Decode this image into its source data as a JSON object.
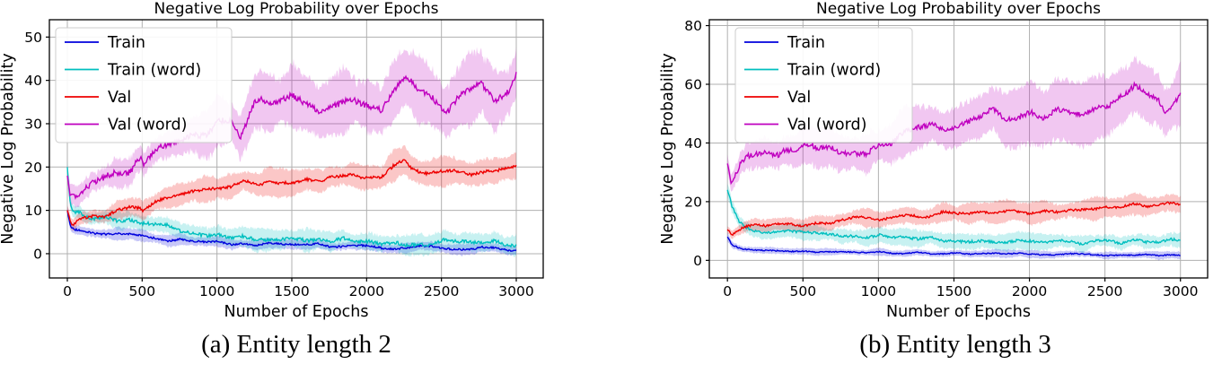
{
  "figure": {
    "background": "#ffffff"
  },
  "chart_data": [
    {
      "type": "line",
      "title": "Negative Log Probability over Epochs",
      "xlabel": "Number of Epochs",
      "ylabel": "Negative Log Probability",
      "caption": "(a) Entity length 2",
      "xlim": [
        -120,
        3180
      ],
      "ylim": [
        -5.6,
        54
      ],
      "xticks": [
        0,
        500,
        1000,
        1500,
        2000,
        2500,
        3000
      ],
      "yticks": [
        0,
        10,
        20,
        30,
        40,
        50
      ],
      "grid": true,
      "grid_color": "#b0b0b0",
      "legend_position": "upper left",
      "band_opacity": 0.22,
      "series": [
        {
          "name": "Train",
          "color": "#0000dd",
          "noise": 0.4,
          "x": [
            0,
            20,
            50,
            100,
            200,
            300,
            400,
            490,
            510,
            600,
            700,
            800,
            900,
            1000,
            1100,
            1200,
            1400,
            1600,
            1800,
            2000,
            2200,
            2400,
            2600,
            2800,
            3000
          ],
          "y": [
            10,
            6.5,
            5.6,
            5.2,
            4.7,
            4.4,
            4.2,
            4.1,
            3.9,
            3.4,
            3.1,
            2.9,
            2.7,
            2.5,
            2.4,
            2.3,
            2.1,
            1.9,
            1.8,
            1.6,
            1.5,
            1.4,
            1.3,
            1.2,
            1.1
          ],
          "band": [
            1.5,
            1.3,
            1.2,
            1.2,
            1.2,
            1.2,
            1.2,
            1.2,
            1.2,
            1.1,
            1.1,
            1.1,
            1.1,
            1.0,
            1.0,
            1.0,
            1.0,
            1.0,
            1.0,
            1.0,
            1.0,
            1.0,
            1.0,
            1.0,
            1.0
          ]
        },
        {
          "name": "Train (word)",
          "color": "#00bfbf",
          "noise": 0.7,
          "x": [
            0,
            20,
            50,
            100,
            200,
            300,
            400,
            490,
            510,
            600,
            700,
            800,
            900,
            1000,
            1100,
            1200,
            1400,
            1600,
            1800,
            2000,
            2200,
            2400,
            2600,
            2800,
            3000
          ],
          "y": [
            20,
            11,
            9.5,
            8.8,
            8.3,
            7.9,
            7.3,
            7.0,
            7.2,
            6.3,
            5.7,
            5.2,
            4.8,
            4.4,
            4.0,
            3.7,
            3.3,
            3.0,
            2.9,
            2.7,
            2.7,
            2.6,
            2.6,
            2.5,
            2.3
          ],
          "band": [
            1.5,
            1.5,
            1.5,
            1.5,
            1.6,
            1.7,
            1.8,
            1.9,
            1.9,
            2.0,
            2.0,
            2.1,
            2.1,
            2.1,
            2.1,
            2.1,
            2.1,
            2.1,
            2.1,
            2.1,
            2.1,
            2.1,
            2.1,
            2.1,
            2.1
          ]
        },
        {
          "name": "Val",
          "color": "#ee0000",
          "noise": 0.6,
          "x": [
            0,
            30,
            100,
            200,
            300,
            400,
            490,
            510,
            600,
            700,
            800,
            900,
            1000,
            1100,
            1200,
            1300,
            1400,
            1500,
            1600,
            1700,
            1800,
            1900,
            2000,
            2100,
            2200,
            2250,
            2300,
            2400,
            2500,
            2600,
            2700,
            2800,
            2900,
            3000
          ],
          "y": [
            10,
            6.4,
            7.6,
            8.4,
            9.3,
            10.0,
            10.8,
            10.2,
            11.8,
            12.8,
            13.4,
            14.3,
            15.3,
            15.8,
            16.3,
            15.9,
            16.4,
            17.0,
            17.4,
            16.9,
            17.6,
            18.4,
            17.6,
            18.1,
            20.3,
            21.2,
            19.6,
            18.6,
            19.0,
            19.5,
            18.6,
            19.4,
            19.9,
            20.4
          ],
          "band": [
            1.2,
            1.2,
            1.4,
            1.6,
            1.8,
            1.9,
            2.0,
            2.0,
            2.2,
            2.3,
            2.4,
            2.5,
            2.6,
            2.6,
            2.7,
            2.7,
            2.7,
            2.8,
            2.8,
            2.8,
            2.8,
            2.9,
            2.9,
            2.9,
            3.0,
            3.0,
            3.0,
            3.0,
            3.0,
            3.0,
            3.0,
            3.0,
            3.0,
            3.0
          ]
        },
        {
          "name": "Val (word)",
          "color": "#bf00bf",
          "noise": 1.3,
          "x": [
            0,
            20,
            100,
            200,
            300,
            400,
            490,
            510,
            600,
            700,
            800,
            900,
            1000,
            1100,
            1150,
            1250,
            1300,
            1400,
            1500,
            1600,
            1700,
            1800,
            1900,
            2000,
            2100,
            2200,
            2270,
            2350,
            2450,
            2550,
            2650,
            2750,
            2850,
            2950,
            3000
          ],
          "y": [
            18,
            13.2,
            15.0,
            16.4,
            18.6,
            19.8,
            21.8,
            19.5,
            23.0,
            25.5,
            26.5,
            27.5,
            29.0,
            31.5,
            27.5,
            34.5,
            35.5,
            36.0,
            37.5,
            35.5,
            34.0,
            35.5,
            37.0,
            35.0,
            34.0,
            39.0,
            41.0,
            37.5,
            35.0,
            33.5,
            36.5,
            38.5,
            36.0,
            38.0,
            41.5
          ],
          "band": [
            2.0,
            2.0,
            2.2,
            2.5,
            2.8,
            3.0,
            3.2,
            3.2,
            3.6,
            4.0,
            4.3,
            4.5,
            4.8,
            5.0,
            5.0,
            5.5,
            5.6,
            5.8,
            6.0,
            6.0,
            6.0,
            6.2,
            6.3,
            6.3,
            6.4,
            6.5,
            6.5,
            6.6,
            6.6,
            6.7,
            6.8,
            6.9,
            7.0,
            7.0,
            7.0
          ]
        }
      ]
    },
    {
      "type": "line",
      "title": "Negative Log Probability over Epochs",
      "xlabel": "Number of Epochs",
      "ylabel": "Negative Log Probability",
      "caption": "(b) Entity length 3",
      "xlim": [
        -120,
        3180
      ],
      "ylim": [
        -6,
        82
      ],
      "xticks": [
        0,
        500,
        1000,
        1500,
        2000,
        2500,
        3000
      ],
      "yticks": [
        0,
        20,
        40,
        60,
        80
      ],
      "grid": true,
      "grid_color": "#b0b0b0",
      "legend_position": "upper left",
      "band_opacity": 0.22,
      "series": [
        {
          "name": "Train",
          "color": "#0000dd",
          "noise": 0.35,
          "x": [
            0,
            30,
            100,
            200,
            300,
            400,
            500,
            700,
            1000,
            1300,
            1600,
            2000,
            2400,
            2700,
            3000
          ],
          "y": [
            8,
            5.2,
            4.0,
            3.4,
            3.2,
            3.1,
            3.0,
            2.9,
            2.6,
            2.4,
            2.3,
            2.1,
            1.9,
            1.8,
            1.6
          ],
          "band": [
            1.4,
            1.2,
            1.1,
            1.1,
            1.1,
            1.1,
            1.1,
            1.1,
            1.1,
            1.1,
            1.1,
            1.1,
            1.1,
            1.1,
            1.1
          ]
        },
        {
          "name": "Train (word)",
          "color": "#00bfbf",
          "noise": 0.8,
          "x": [
            0,
            30,
            80,
            150,
            250,
            350,
            450,
            550,
            700,
            850,
            1000,
            1200,
            1400,
            1600,
            1800,
            2000,
            2200,
            2400,
            2600,
            2800,
            3000
          ],
          "y": [
            24,
            18,
            13,
            10.8,
            10.2,
            10.4,
            9.9,
            9.6,
            9.2,
            8.7,
            8.4,
            7.9,
            7.4,
            7.2,
            6.8,
            6.7,
            6.3,
            6.2,
            6.4,
            6.1,
            6.6
          ],
          "band": [
            2.0,
            2.0,
            2.0,
            2.1,
            2.2,
            2.2,
            2.3,
            2.3,
            2.3,
            2.4,
            2.4,
            2.4,
            2.4,
            2.4,
            2.4,
            2.4,
            2.4,
            2.4,
            2.5,
            2.5,
            2.5
          ]
        },
        {
          "name": "Val",
          "color": "#ee0000",
          "noise": 0.7,
          "x": [
            0,
            30,
            100,
            200,
            300,
            400,
            500,
            600,
            700,
            800,
            900,
            1000,
            1100,
            1200,
            1300,
            1400,
            1500,
            1600,
            1700,
            1800,
            1900,
            2000,
            2100,
            2200,
            2300,
            2400,
            2500,
            2600,
            2700,
            2800,
            2900,
            3000
          ],
          "y": [
            10.5,
            8.2,
            10.8,
            11.8,
            12.0,
            12.4,
            12.1,
            12.8,
            13.3,
            13.8,
            14.4,
            14.0,
            14.8,
            15.3,
            14.9,
            15.8,
            16.4,
            15.5,
            15.9,
            16.4,
            16.9,
            16.4,
            17.3,
            16.9,
            17.4,
            17.9,
            18.4,
            17.9,
            19.4,
            18.4,
            19.0,
            18.6
          ],
          "band": [
            1.5,
            1.5,
            1.8,
            2.0,
            2.2,
            2.3,
            2.4,
            2.5,
            2.6,
            2.7,
            2.8,
            2.8,
            2.9,
            2.9,
            3.0,
            3.0,
            3.0,
            3.0,
            3.0,
            3.1,
            3.1,
            3.1,
            3.2,
            3.2,
            3.2,
            3.3,
            3.3,
            3.3,
            3.4,
            3.4,
            3.4,
            3.4
          ]
        },
        {
          "name": "Val (word)",
          "color": "#bf00bf",
          "noise": 1.6,
          "x": [
            0,
            25,
            80,
            130,
            200,
            300,
            380,
            450,
            550,
            650,
            750,
            850,
            950,
            1050,
            1150,
            1250,
            1350,
            1450,
            1550,
            1650,
            1750,
            1850,
            1950,
            2050,
            2150,
            2250,
            2350,
            2450,
            2550,
            2650,
            2700,
            2780,
            2850,
            2900,
            2950,
            3000
          ],
          "y": [
            33,
            24,
            31,
            34.5,
            35.5,
            36.0,
            38.0,
            36.5,
            38.5,
            37.0,
            38.0,
            36.0,
            37.5,
            38.5,
            42.0,
            44.5,
            45.5,
            44.0,
            46.0,
            48.0,
            50.5,
            49.0,
            50.0,
            48.5,
            50.5,
            52.0,
            50.0,
            52.5,
            55.0,
            58.5,
            61.5,
            58.0,
            53.5,
            50.5,
            54.0,
            56.5
          ],
          "band": [
            3.0,
            3.0,
            3.5,
            4.0,
            4.5,
            5.0,
            5.2,
            5.4,
            5.6,
            5.8,
            6.0,
            6.0,
            6.2,
            6.4,
            6.6,
            6.8,
            7.0,
            7.2,
            7.4,
            7.6,
            7.8,
            8.0,
            8.2,
            8.4,
            8.5,
            8.6,
            8.7,
            8.8,
            9.0,
            9.2,
            9.5,
            9.8,
            10.0,
            10.0,
            10.0,
            10.0
          ]
        }
      ]
    }
  ]
}
